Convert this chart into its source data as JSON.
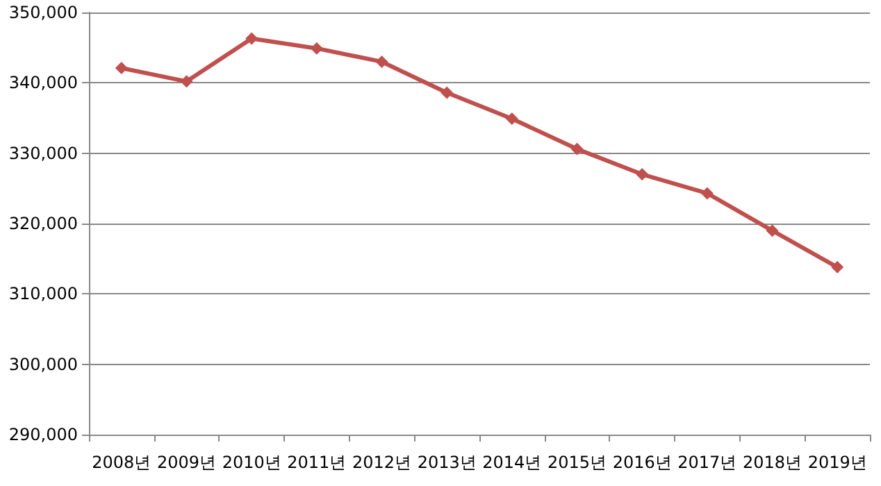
{
  "chart_data": {
    "type": "line",
    "categories": [
      "2008년",
      "2009년",
      "2010년",
      "2011년",
      "2012년",
      "2013년",
      "2014년",
      "2015년",
      "2016년",
      "2017년",
      "2018년",
      "2019년"
    ],
    "series": [
      {
        "color": "#c0504d",
        "values": [
          342100,
          340200,
          346300,
          344900,
          343000,
          338600,
          334900,
          330600,
          327000,
          324300,
          319000,
          313800
        ]
      }
    ],
    "ylim": [
      290000,
      350000
    ],
    "yticks": [
      {
        "value": 290000,
        "label": "290,000"
      },
      {
        "value": 300000,
        "label": "300,000"
      },
      {
        "value": 310000,
        "label": "310,000"
      },
      {
        "value": 320000,
        "label": "320,000"
      },
      {
        "value": 330000,
        "label": "330,000"
      },
      {
        "value": 340000,
        "label": "340,000"
      },
      {
        "value": 350000,
        "label": "350,000"
      }
    ],
    "grid": "y",
    "marker": "diamond",
    "line_style": "solid"
  }
}
